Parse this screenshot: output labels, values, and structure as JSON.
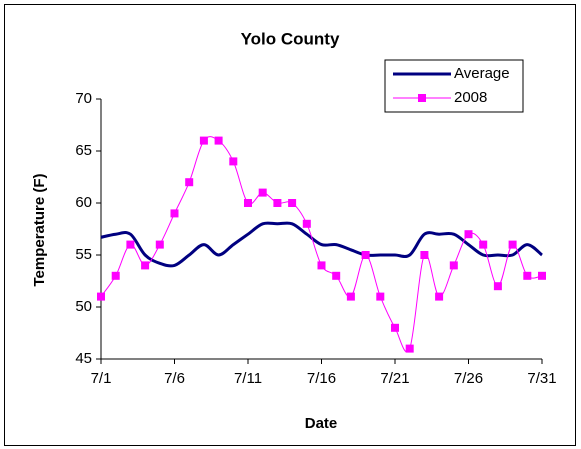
{
  "chart_data": {
    "type": "line",
    "title": "Yolo County",
    "x_label": "Date",
    "y_label": "Temperature (F)",
    "categories": [
      "7/1",
      null,
      null,
      null,
      null,
      "7/6",
      null,
      null,
      null,
      null,
      "7/11",
      null,
      null,
      null,
      null,
      "7/16",
      null,
      null,
      null,
      null,
      "7/21",
      null,
      null,
      null,
      null,
      "7/26",
      null,
      null,
      null,
      null,
      "7/31"
    ],
    "series": [
      {
        "name": "Average",
        "color": "#000080",
        "marker": "none",
        "values": [
          56.7,
          57,
          57,
          55,
          54.2,
          54,
          55,
          56,
          55,
          56,
          57,
          58,
          58,
          58,
          57,
          56,
          56,
          55.5,
          55,
          55,
          55,
          55,
          57,
          57,
          57,
          56,
          55,
          55,
          55,
          56,
          55
        ]
      },
      {
        "name": "2008",
        "color": "#ff00ff",
        "marker": "square",
        "values": [
          51,
          53,
          56,
          54,
          56,
          59,
          62,
          66,
          66,
          64,
          60,
          61,
          60,
          60,
          58,
          54,
          53,
          51,
          55,
          51,
          48,
          46,
          55,
          51,
          54,
          57,
          56,
          52,
          56,
          53,
          53
        ]
      }
    ],
    "ylim": [
      45,
      70
    ],
    "yticks": [
      45,
      50,
      55,
      60,
      65,
      70
    ],
    "grid": false,
    "legend": "top-right"
  }
}
